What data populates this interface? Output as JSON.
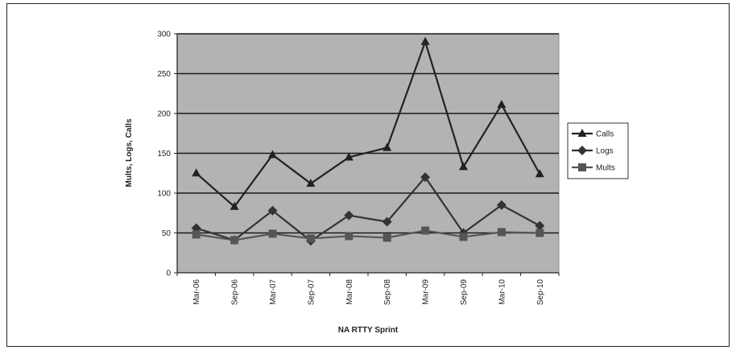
{
  "chart_data": {
    "type": "line",
    "categories": [
      "Mar-06",
      "Sep-06",
      "Mar-07",
      "Sep-07",
      "Mar-08",
      "Sep-08",
      "Mar-09",
      "Sep-09",
      "Mar-10",
      "Sep-10"
    ],
    "series": [
      {
        "name": "Calls",
        "values": [
          125,
          83,
          148,
          112,
          145,
          157,
          290,
          133,
          211,
          124
        ],
        "marker": "triangle",
        "color": "#222222"
      },
      {
        "name": "Logs",
        "values": [
          56,
          41,
          78,
          40,
          72,
          64,
          120,
          50,
          85,
          59
        ],
        "marker": "diamond",
        "color": "#333333"
      },
      {
        "name": "Mults",
        "values": [
          48,
          41,
          49,
          43,
          46,
          44,
          53,
          45,
          51,
          50
        ],
        "marker": "square",
        "color": "#555555"
      }
    ],
    "title": "",
    "xlabel": "NA RTTY Sprint",
    "ylabel": "Mults, Logs, Calls",
    "ylim": [
      0,
      300
    ],
    "yticks": [
      0,
      50,
      100,
      150,
      200,
      250,
      300
    ],
    "grid": true,
    "legend": "right",
    "plot_background": "#b3b3b3"
  }
}
